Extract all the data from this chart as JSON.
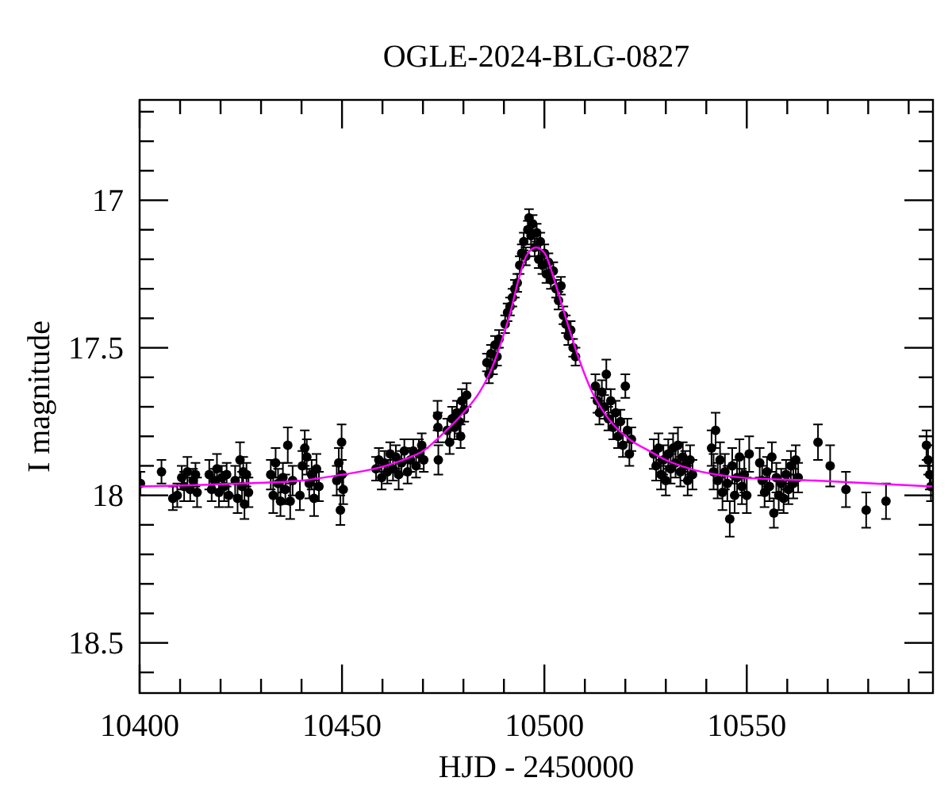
{
  "chart_data": {
    "type": "scatter",
    "title": "OGLE-2024-BLG-0827",
    "xlabel": "HJD - 2450000",
    "ylabel": "I magnitude",
    "xlim": [
      10400,
      10596
    ],
    "ylim": [
      18.67,
      16.66
    ],
    "xticks": [
      10400,
      {
        "value": 10410,
        "label": null
      },
      {
        "value": 10420,
        "label": null
      },
      {
        "value": 10430,
        "label": null
      },
      {
        "value": 10440,
        "label": null
      },
      10450,
      {
        "value": 10460,
        "label": null
      },
      {
        "value": 10470,
        "label": null
      },
      {
        "value": 10480,
        "label": null
      },
      {
        "value": 10490,
        "label": null
      },
      10500,
      {
        "value": 10510,
        "label": null
      },
      {
        "value": 10520,
        "label": null
      },
      {
        "value": 10530,
        "label": null
      },
      {
        "value": 10540,
        "label": null
      },
      10550,
      {
        "value": 10560,
        "label": null
      },
      {
        "value": 10570,
        "label": null
      },
      {
        "value": 10580,
        "label": null
      },
      {
        "value": 10590,
        "label": null
      }
    ],
    "yticks": [
      {
        "value": 16.7,
        "label": null
      },
      {
        "value": 16.8,
        "label": null
      },
      {
        "value": 16.9,
        "label": null
      },
      17,
      {
        "value": 17.1,
        "label": null
      },
      {
        "value": 17.2,
        "label": null
      },
      {
        "value": 17.3,
        "label": null
      },
      {
        "value": 17.4,
        "label": null
      },
      17.5,
      {
        "value": 17.6,
        "label": null
      },
      {
        "value": 17.7,
        "label": null
      },
      {
        "value": 17.8,
        "label": null
      },
      {
        "value": 17.9,
        "label": null
      },
      18,
      {
        "value": 18.1,
        "label": null
      },
      {
        "value": 18.2,
        "label": null
      },
      {
        "value": 18.3,
        "label": null
      },
      {
        "value": 18.4,
        "label": null
      },
      18.5,
      {
        "value": 18.6,
        "label": null
      }
    ],
    "series": [
      {
        "type": "scatter",
        "color": "#000000",
        "marker": "circle",
        "x": [
          10400.2,
          10405.4,
          10408.2,
          10409.3,
          10410.4,
          10411.0,
          10411.8,
          10412.5,
          10413.2,
          10413.8,
          10414.2,
          10417.2,
          10417.8,
          10418.5,
          10419.1,
          10419.6,
          10420.3,
          10420.9,
          10421.5,
          10422.0,
          10423.6,
          10424.2,
          10424.8,
          10425.3,
          10425.6,
          10425.9,
          10426.4,
          10426.9,
          10432.4,
          10433.0,
          10433.6,
          10434.2,
          10434.8,
          10435.4,
          10436.0,
          10436.6,
          10437.2,
          10437.8,
          10439.6,
          10440.2,
          10440.8,
          10441.3,
          10441.9,
          10442.5,
          10443.1,
          10443.7,
          10444.3,
          10448.7,
          10449.2,
          10449.6,
          10449.9,
          10450.0,
          10450.3,
          10458.4,
          10459.1,
          10459.8,
          10460.5,
          10461.2,
          10461.9,
          10462.6,
          10463.3,
          10464.0,
          10464.7,
          10465.4,
          10466.2,
          10466.9,
          10467.6,
          10468.3,
          10469.0,
          10469.7,
          10470.2,
          10473.6,
          10473.7,
          10473.8,
          10476.0,
          10476.6,
          10477.2,
          10477.8,
          10478.4,
          10479.0,
          10479.3,
          10479.6,
          10480.2,
          10480.8,
          10485.8,
          10486.3,
          10486.8,
          10487.3,
          10487.8,
          10488.3,
          10488.8,
          10490.3,
          10490.9,
          10491.5,
          10492.1,
          10492.7,
          10493.3,
          10493.9,
          10494.4,
          10494.9,
          10495.4,
          10495.9,
          10496.2,
          10496.7,
          10497.1,
          10497.6,
          10498.1,
          10498.6,
          10499.0,
          10499.5,
          10500.0,
          10500.5,
          10501.0,
          10501.6,
          10502.2,
          10502.9,
          10503.5,
          10504.1,
          10504.7,
          10505.3,
          10505.9,
          10506.5,
          10507.1,
          10507.7,
          10512.6,
          10513.1,
          10513.6,
          10514.2,
          10514.8,
          10515.3,
          10515.8,
          10516.4,
          10517.0,
          10517.6,
          10518.2,
          10518.8,
          10519.4,
          10520.0,
          10520.5,
          10521.0,
          10521.5,
          10527.0,
          10527.6,
          10528.2,
          10528.8,
          10529.4,
          10530.0,
          10530.6,
          10531.2,
          10531.8,
          10532.4,
          10533.0,
          10533.6,
          10534.2,
          10534.8,
          10535.4,
          10536.0,
          10536.6,
          10541.3,
          10541.8,
          10542.3,
          10542.8,
          10543.4,
          10544.0,
          10544.6,
          10545.2,
          10545.8,
          10546.4,
          10547.0,
          10547.6,
          10548.2,
          10548.8,
          10549.4,
          10550.0,
          10550.6,
          10553.2,
          10553.8,
          10554.4,
          10555.0,
          10555.6,
          10556.2,
          10556.7,
          10557.3,
          10557.9,
          10558.5,
          10559.1,
          10559.7,
          10560.3,
          10560.9,
          10561.5,
          10562.1,
          10562.7,
          10567.6,
          10570.6,
          10574.5,
          10579.5,
          10584.4,
          10594.4,
          10594.8,
          10595.2,
          10595.5
        ],
        "values": [
          17.96,
          17.92,
          18.01,
          18.0,
          17.94,
          17.97,
          17.92,
          17.98,
          17.95,
          17.93,
          17.99,
          17.93,
          17.98,
          17.95,
          17.91,
          17.99,
          17.94,
          17.97,
          17.93,
          18.0,
          17.95,
          18.01,
          17.88,
          17.97,
          17.92,
          18.03,
          17.93,
          17.99,
          17.93,
          18.0,
          17.89,
          17.96,
          18.02,
          17.94,
          17.98,
          17.83,
          18.02,
          17.95,
          18.0,
          17.9,
          17.84,
          17.87,
          17.96,
          17.93,
          18.01,
          17.91,
          17.97,
          17.95,
          17.89,
          18.05,
          17.82,
          17.93,
          17.98,
          17.91,
          17.88,
          17.94,
          17.89,
          17.92,
          17.86,
          17.91,
          17.87,
          17.93,
          17.89,
          17.85,
          17.92,
          17.88,
          17.85,
          17.9,
          17.86,
          17.83,
          17.88,
          17.73,
          17.77,
          17.88,
          17.78,
          17.82,
          17.74,
          17.77,
          17.72,
          17.75,
          17.8,
          17.68,
          17.71,
          17.66,
          17.55,
          17.59,
          17.52,
          17.56,
          17.49,
          17.53,
          17.47,
          17.42,
          17.38,
          17.36,
          17.33,
          17.3,
          17.28,
          17.22,
          17.18,
          17.14,
          17.19,
          17.1,
          17.06,
          17.12,
          17.08,
          17.16,
          17.11,
          17.2,
          17.14,
          17.22,
          17.18,
          17.25,
          17.21,
          17.27,
          17.24,
          17.3,
          17.34,
          17.29,
          17.39,
          17.42,
          17.46,
          17.44,
          17.5,
          17.53,
          17.63,
          17.68,
          17.72,
          17.65,
          17.7,
          17.59,
          17.74,
          17.68,
          17.77,
          17.72,
          17.8,
          17.75,
          17.83,
          17.63,
          17.78,
          17.86,
          17.81,
          17.86,
          17.9,
          17.84,
          17.93,
          17.88,
          17.95,
          17.86,
          17.91,
          17.84,
          17.89,
          17.83,
          17.92,
          17.87,
          17.9,
          17.95,
          17.88,
          17.93,
          17.84,
          17.92,
          17.78,
          17.95,
          17.88,
          17.99,
          17.92,
          17.96,
          18.08,
          17.9,
          18.0,
          17.94,
          17.87,
          17.97,
          17.93,
          18.0,
          17.86,
          17.89,
          17.95,
          17.99,
          17.92,
          17.97,
          17.87,
          18.06,
          17.94,
          18.0,
          17.96,
          18.01,
          17.93,
          17.98,
          17.9,
          17.96,
          17.88,
          17.94,
          17.82,
          17.9,
          17.98,
          18.05,
          18.02,
          17.83,
          17.88,
          17.93,
          17.97
        ],
        "errors": [
          0.04,
          0.04,
          0.04,
          0.04,
          0.04,
          0.05,
          0.05,
          0.04,
          0.04,
          0.04,
          0.05,
          0.05,
          0.04,
          0.04,
          0.05,
          0.05,
          0.04,
          0.05,
          0.04,
          0.04,
          0.05,
          0.05,
          0.06,
          0.05,
          0.05,
          0.05,
          0.04,
          0.05,
          0.05,
          0.06,
          0.05,
          0.05,
          0.05,
          0.05,
          0.05,
          0.06,
          0.06,
          0.05,
          0.05,
          0.05,
          0.06,
          0.06,
          0.05,
          0.05,
          0.06,
          0.05,
          0.05,
          0.05,
          0.05,
          0.05,
          0.06,
          0.05,
          0.05,
          0.04,
          0.04,
          0.04,
          0.04,
          0.04,
          0.04,
          0.04,
          0.04,
          0.05,
          0.04,
          0.04,
          0.04,
          0.04,
          0.04,
          0.04,
          0.05,
          0.04,
          0.04,
          0.05,
          0.05,
          0.05,
          0.04,
          0.04,
          0.04,
          0.04,
          0.04,
          0.04,
          0.04,
          0.04,
          0.04,
          0.04,
          0.03,
          0.03,
          0.03,
          0.03,
          0.03,
          0.03,
          0.03,
          0.03,
          0.03,
          0.03,
          0.03,
          0.03,
          0.03,
          0.03,
          0.03,
          0.03,
          0.03,
          0.03,
          0.03,
          0.03,
          0.03,
          0.03,
          0.03,
          0.03,
          0.03,
          0.03,
          0.03,
          0.03,
          0.03,
          0.03,
          0.03,
          0.03,
          0.03,
          0.03,
          0.03,
          0.03,
          0.03,
          0.03,
          0.03,
          0.03,
          0.04,
          0.04,
          0.04,
          0.04,
          0.04,
          0.05,
          0.04,
          0.04,
          0.04,
          0.04,
          0.04,
          0.04,
          0.04,
          0.04,
          0.04,
          0.04,
          0.04,
          0.05,
          0.05,
          0.05,
          0.05,
          0.05,
          0.05,
          0.05,
          0.05,
          0.05,
          0.05,
          0.06,
          0.05,
          0.05,
          0.05,
          0.05,
          0.05,
          0.05,
          0.06,
          0.06,
          0.06,
          0.06,
          0.06,
          0.06,
          0.06,
          0.06,
          0.06,
          0.06,
          0.06,
          0.06,
          0.06,
          0.06,
          0.06,
          0.06,
          0.06,
          0.05,
          0.05,
          0.05,
          0.05,
          0.05,
          0.05,
          0.05,
          0.05,
          0.05,
          0.05,
          0.05,
          0.05,
          0.05,
          0.05,
          0.05,
          0.05,
          0.05,
          0.06,
          0.07,
          0.06,
          0.06,
          0.06,
          0.05,
          0.05,
          0.05,
          0.05
        ]
      },
      {
        "type": "line",
        "color": "#ff00ff",
        "x": [
          10400,
          10425,
          10440,
          10450,
          10458,
          10465,
          10470,
          10475,
          10480,
          10484,
          10487,
          10489.6,
          10491.6,
          10493.6,
          10495.5,
          10497.9,
          10500.1,
          10502,
          10504,
          10506,
          10508.6,
          10511.8,
          10515.8,
          10521,
          10526,
          10530,
          10536,
          10549,
          10567,
          10596
        ],
        "values": [
          17.97,
          17.96,
          17.95,
          17.93,
          17.91,
          17.88,
          17.85,
          17.79,
          17.72,
          17.65,
          17.57,
          17.47,
          17.38,
          17.27,
          17.19,
          17.16,
          17.18,
          17.25,
          17.34,
          17.43,
          17.54,
          17.65,
          17.74,
          17.81,
          17.85,
          17.88,
          17.91,
          17.94,
          17.95,
          17.97
        ]
      }
    ]
  }
}
